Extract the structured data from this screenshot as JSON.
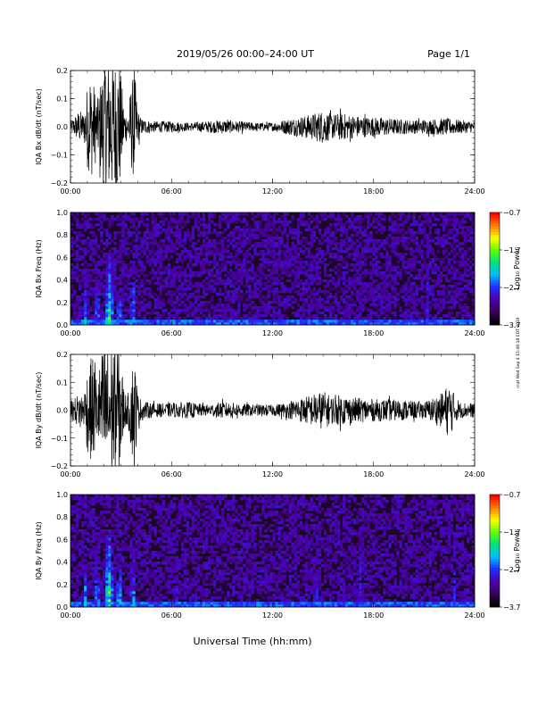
{
  "header": {
    "title": "2019/05/26  00:00–24:00 UT",
    "page": "Page 1/1"
  },
  "x_axis_label": "Universal Time (hh:mm)",
  "side_note": "mat Wed Sep 4 15:46:18 EDT 2019",
  "colors": {
    "trace": "#000000",
    "spectrogram_bg": "#1a0826",
    "colormap": [
      "#000000",
      "#3b0060",
      "#4b00b0",
      "#2030ff",
      "#00c0ff",
      "#00e080",
      "#60ff00",
      "#ffff00",
      "#ff8000",
      "#ff0000"
    ]
  },
  "chart_data": [
    {
      "type": "line",
      "id": "bx",
      "ylabel": "IQA Bx dB/dt (nT/sec)",
      "xlim": [
        0,
        24
      ],
      "ylim": [
        -0.2,
        0.2
      ],
      "xticks": [
        0,
        6,
        12,
        18,
        24
      ],
      "xtick_labels": [
        "00:00",
        "06:00",
        "12:00",
        "18:00",
        "24:00"
      ],
      "yticks": [
        -0.2,
        -0.1,
        0.0,
        0.1,
        0.2
      ],
      "ytick_labels": [
        "−0.2",
        "−0.1",
        "0.0",
        "0.1",
        "0.2"
      ],
      "envelope": {
        "x": [
          0,
          0.3,
          0.5,
          0.8,
          1.0,
          1.3,
          1.6,
          2.0,
          2.3,
          2.6,
          2.9,
          3.2,
          3.4,
          3.6,
          3.8,
          4.0,
          4.2,
          4.5,
          5.0,
          6.0,
          7.0,
          8.0,
          9.0,
          10.0,
          11.0,
          12.0,
          13.0,
          14.0,
          14.5,
          15.0,
          15.5,
          16.0,
          17.0,
          18.0,
          19.0,
          20.0,
          21.0,
          22.0,
          22.5,
          23.0,
          24.0
        ],
        "amplitude": [
          0.02,
          0.04,
          0.06,
          0.05,
          0.15,
          0.18,
          0.1,
          0.25,
          0.25,
          0.25,
          0.25,
          0.06,
          0.05,
          0.15,
          0.2,
          0.06,
          0.03,
          0.025,
          0.02,
          0.02,
          0.015,
          0.02,
          0.025,
          0.02,
          0.015,
          0.015,
          0.03,
          0.04,
          0.05,
          0.06,
          0.045,
          0.05,
          0.04,
          0.035,
          0.03,
          0.025,
          0.025,
          0.03,
          0.03,
          0.025,
          0.02
        ]
      }
    },
    {
      "type": "heatmap",
      "id": "bxf",
      "ylabel": "IQA Bx Freq (Hz)",
      "xlim": [
        0,
        24
      ],
      "ylim": [
        0,
        1.0
      ],
      "xticks": [
        0,
        6,
        12,
        18,
        24
      ],
      "xtick_labels": [
        "00:00",
        "06:00",
        "12:00",
        "18:00",
        "24:00"
      ],
      "yticks": [
        0.0,
        0.2,
        0.4,
        0.6,
        0.8,
        1.0
      ],
      "ytick_labels": [
        "0.0",
        "0.2",
        "0.4",
        "0.6",
        "0.8",
        "1.0"
      ],
      "colorbar": {
        "label": "Log₁₀ Power",
        "range": [
          -3.7,
          -0.7
        ],
        "ticks": [
          -0.7,
          -1.7,
          -2.7,
          -3.7
        ],
        "tick_labels": [
          "−0.7",
          "−1.7",
          "−2.7",
          "−3.7"
        ]
      },
      "bursts": [
        {
          "x": 0.9,
          "width": 0.3,
          "top_freq": 0.45,
          "level": 0.55
        },
        {
          "x": 1.6,
          "width": 0.25,
          "top_freq": 0.5,
          "level": 0.6
        },
        {
          "x": 2.3,
          "width": 0.5,
          "top_freq": 0.65,
          "level": 0.7
        },
        {
          "x": 2.9,
          "width": 0.4,
          "top_freq": 0.4,
          "level": 0.55
        },
        {
          "x": 3.7,
          "width": 0.3,
          "top_freq": 0.6,
          "level": 0.6
        },
        {
          "x": 21.2,
          "width": 0.1,
          "top_freq": 1.0,
          "level": 0.35
        }
      ]
    },
    {
      "type": "line",
      "id": "by",
      "ylabel": "IQA By dB/dt (nT/sec)",
      "xlim": [
        0,
        24
      ],
      "ylim": [
        -0.2,
        0.2
      ],
      "xticks": [
        0,
        6,
        12,
        18,
        24
      ],
      "xtick_labels": [
        "00:00",
        "06:00",
        "12:00",
        "18:00",
        "24:00"
      ],
      "yticks": [
        -0.2,
        -0.1,
        0.0,
        0.1,
        0.2
      ],
      "ytick_labels": [
        "−0.2",
        "−0.1",
        "0.0",
        "0.1",
        "0.2"
      ],
      "envelope": {
        "x": [
          0,
          0.3,
          0.5,
          0.8,
          1.0,
          1.3,
          1.6,
          2.0,
          2.3,
          2.6,
          2.9,
          3.2,
          3.4,
          3.6,
          3.8,
          4.0,
          4.2,
          4.5,
          5.0,
          6.0,
          7.0,
          8.0,
          9.0,
          10.0,
          11.0,
          12.0,
          13.0,
          14.0,
          14.5,
          15.0,
          15.5,
          16.0,
          17.0,
          18.0,
          19.0,
          20.0,
          21.0,
          22.0,
          22.5,
          23.0,
          24.0
        ],
        "amplitude": [
          0.03,
          0.05,
          0.06,
          0.06,
          0.15,
          0.2,
          0.12,
          0.25,
          0.25,
          0.25,
          0.25,
          0.07,
          0.05,
          0.15,
          0.2,
          0.06,
          0.04,
          0.03,
          0.025,
          0.025,
          0.03,
          0.02,
          0.03,
          0.025,
          0.02,
          0.02,
          0.03,
          0.05,
          0.06,
          0.07,
          0.05,
          0.055,
          0.045,
          0.04,
          0.04,
          0.035,
          0.03,
          0.06,
          0.1,
          0.03,
          0.025
        ]
      }
    },
    {
      "type": "heatmap",
      "id": "byf",
      "ylabel": "IQA By Freq (Hz)",
      "xlim": [
        0,
        24
      ],
      "ylim": [
        0,
        1.0
      ],
      "xticks": [
        0,
        6,
        12,
        18,
        24
      ],
      "xtick_labels": [
        "00:00",
        "06:00",
        "12:00",
        "18:00",
        "24:00"
      ],
      "yticks": [
        0.0,
        0.2,
        0.4,
        0.6,
        0.8,
        1.0
      ],
      "ytick_labels": [
        "0.0",
        "0.2",
        "0.4",
        "0.6",
        "0.8",
        "1.0"
      ],
      "colorbar": {
        "label": "Log₁₀ Power",
        "range": [
          -3.7,
          -0.7
        ],
        "ticks": [
          -0.7,
          -1.7,
          -2.7,
          -3.7
        ],
        "tick_labels": [
          "−0.7",
          "−1.7",
          "−2.7",
          "−3.7"
        ]
      },
      "bursts": [
        {
          "x": 0.9,
          "width": 0.3,
          "top_freq": 0.5,
          "level": 0.55
        },
        {
          "x": 1.6,
          "width": 0.25,
          "top_freq": 0.6,
          "level": 0.6
        },
        {
          "x": 2.3,
          "width": 0.5,
          "top_freq": 0.7,
          "level": 0.75
        },
        {
          "x": 2.9,
          "width": 0.4,
          "top_freq": 0.45,
          "level": 0.6
        },
        {
          "x": 3.7,
          "width": 0.3,
          "top_freq": 0.6,
          "level": 0.6
        },
        {
          "x": 6.3,
          "width": 0.15,
          "top_freq": 1.0,
          "level": 0.35
        },
        {
          "x": 8.3,
          "width": 0.1,
          "top_freq": 1.0,
          "level": 0.4
        },
        {
          "x": 14.6,
          "width": 0.5,
          "top_freq": 1.0,
          "level": 0.35
        },
        {
          "x": 16.2,
          "width": 0.2,
          "top_freq": 1.0,
          "level": 0.3
        },
        {
          "x": 17.2,
          "width": 0.5,
          "top_freq": 1.0,
          "level": 0.35
        },
        {
          "x": 22.8,
          "width": 0.15,
          "top_freq": 1.0,
          "level": 0.35
        }
      ]
    }
  ]
}
